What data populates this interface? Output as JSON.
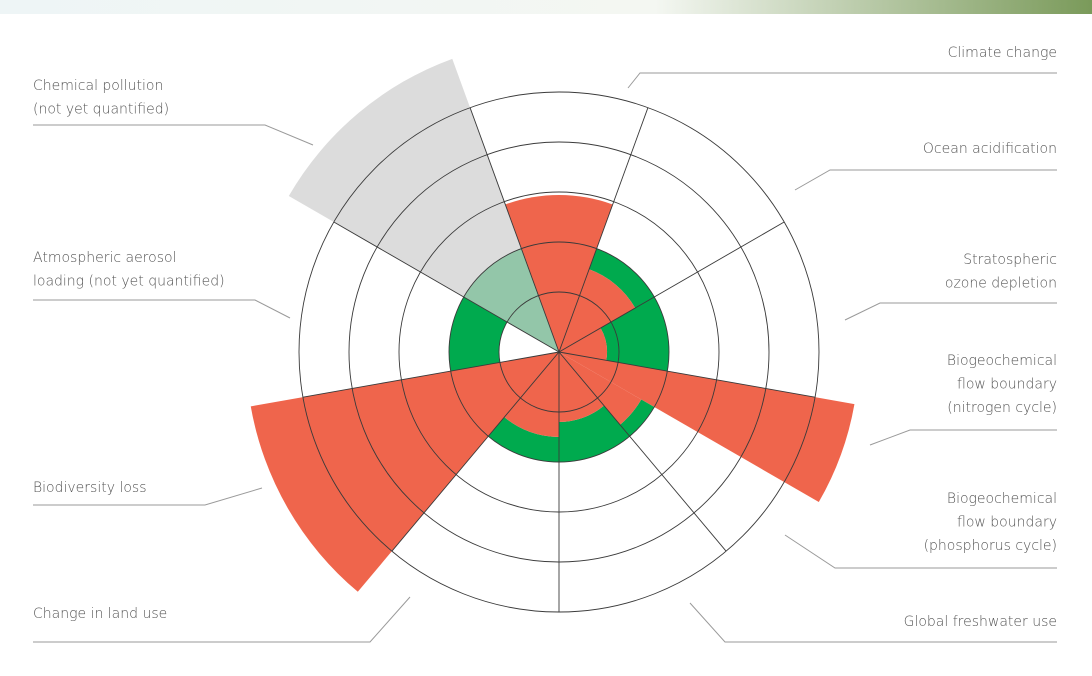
{
  "chart_data": {
    "type": "polar-bar",
    "categories": [
      [
        "Climate change"
      ],
      [
        "Ocean acidification"
      ],
      [
        "Stratospheric",
        "ozone depletion"
      ],
      [
        "Biogeochemical",
        "flow boundary",
        "(nitrogen cycle)"
      ],
      [
        "Biogeochemical",
        "flow boundary",
        "(phosphorus cycle)"
      ],
      [
        "Global freshwater use"
      ],
      [
        "Change in land use"
      ],
      [
        "Biodiversity loss"
      ],
      [
        "Atmospheric aerosol",
        "loading (not yet quantified)"
      ],
      [
        "Chemical pollution",
        "(not yet quantified)"
      ]
    ],
    "values": [
      157,
      88,
      48,
      300,
      95,
      70,
      85,
      313,
      null,
      312
    ],
    "colors": [
      "#ef654c",
      "#ef654c",
      "#ef654c",
      "#ef654c",
      "#ef654c",
      "#ef654c",
      "#ef654c",
      "#ef654c",
      "#ef654c",
      "#dcdcdc"
    ],
    "rlim": [
      0,
      320
    ],
    "rticks": [
      60,
      110,
      160,
      210,
      260
    ],
    "boundary": 110,
    "safe_color": "#00aa4e",
    "unquantified_color": "#dcdcdc",
    "unquantified_safe_color": "#93c6a9"
  }
}
